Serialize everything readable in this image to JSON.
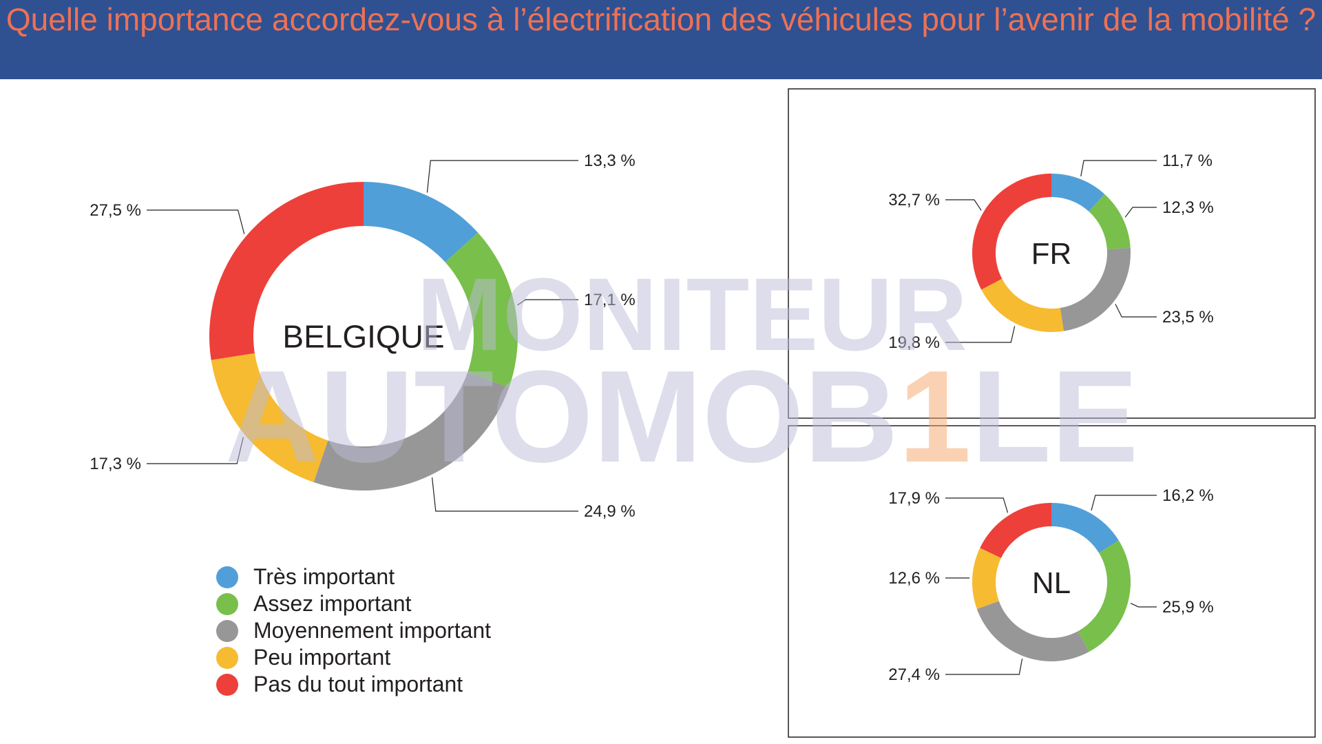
{
  "title": "Quelle importance accordez-vous à l’électrification des véhicules pour l’avenir de la mobilité ?",
  "watermark": {
    "line1": "MONITEUR",
    "line2_a": "AUTOMOB",
    "line2_b": "1",
    "line2_c": "LE"
  },
  "colors": {
    "header_bg": "#2f5191",
    "title": "#ee7155",
    "categories": [
      "#509fd8",
      "#79bf4b",
      "#979797",
      "#f6bb31",
      "#ed403a"
    ]
  },
  "legend": [
    {
      "label": "Très important",
      "color": "#509fd8"
    },
    {
      "label": "Assez important",
      "color": "#79bf4b"
    },
    {
      "label": "Moyennement important",
      "color": "#979797"
    },
    {
      "label": "Peu important",
      "color": "#f6bb31"
    },
    {
      "label": "Pas du tout important",
      "color": "#ed403a"
    }
  ],
  "chart_data": [
    {
      "type": "pie",
      "title": "BELGIQUE",
      "categories": [
        "Très important",
        "Assez important",
        "Moyennement important",
        "Peu important",
        "Pas du tout important"
      ],
      "values": [
        13.3,
        17.1,
        24.9,
        17.3,
        27.5
      ],
      "value_labels": [
        "13,3 %",
        "17,1 %",
        "24,9 %",
        "17,3 %",
        "27,5 %"
      ],
      "donut": true
    },
    {
      "type": "pie",
      "title": "FR",
      "categories": [
        "Très important",
        "Assez important",
        "Moyennement important",
        "Peu important",
        "Pas du tout important"
      ],
      "values": [
        11.7,
        12.3,
        23.5,
        19.8,
        32.7
      ],
      "value_labels": [
        "11,7 %",
        "12,3 %",
        "23,5 %",
        "19,8 %",
        "32,7 %"
      ],
      "donut": true
    },
    {
      "type": "pie",
      "title": "NL",
      "categories": [
        "Très important",
        "Assez important",
        "Moyennement important",
        "Peu important",
        "Pas du tout important"
      ],
      "values": [
        16.2,
        25.9,
        27.4,
        12.6,
        17.9
      ],
      "value_labels": [
        "16,2 %",
        "25,9 %",
        "27,4 %",
        "12,6 %",
        "17,9 %"
      ],
      "donut": true
    }
  ]
}
